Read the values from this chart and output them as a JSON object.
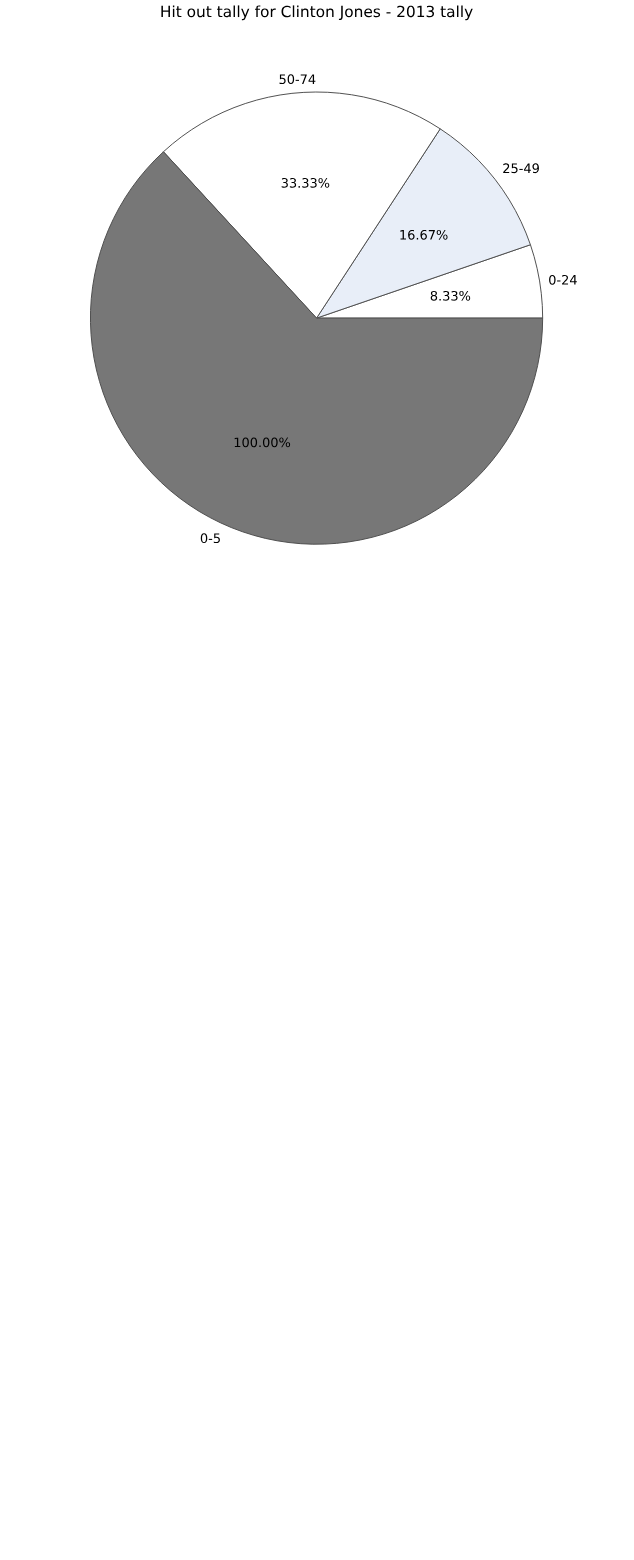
{
  "chart_data": {
    "type": "pie",
    "title": "Hit out tally for Clinton Jones - 2013 tally",
    "categories": [
      "0-24",
      "25-49",
      "50-74",
      "0-5"
    ],
    "values": [
      8.33,
      16.67,
      33.33,
      100
    ],
    "value_labels": [
      "8.33%",
      "16.67%",
      "33.33%",
      "100.00%"
    ],
    "colors": [
      "#ffffff",
      "#e8eef8",
      "#ffffff",
      "#777777"
    ]
  }
}
